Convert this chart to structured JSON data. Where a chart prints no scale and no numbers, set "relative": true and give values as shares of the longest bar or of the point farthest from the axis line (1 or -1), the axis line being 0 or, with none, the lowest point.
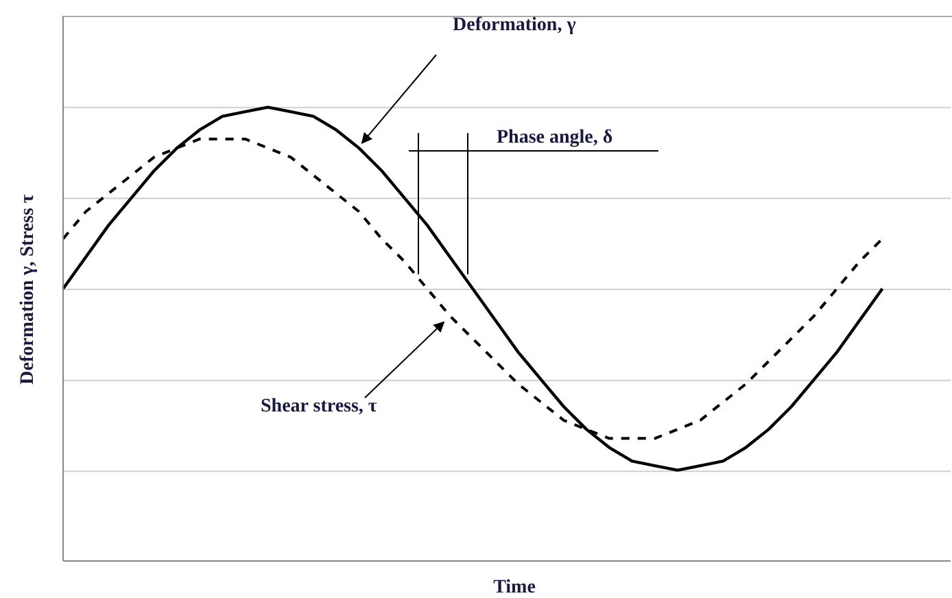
{
  "chart_data": {
    "type": "line",
    "relative": true,
    "xlabel": "Time",
    "ylabel": "Deformation γ, Stress τ",
    "grid": "y",
    "legend": false,
    "marker": "none",
    "categories": [
      null,
      null,
      null,
      null,
      null,
      null,
      null,
      null,
      null,
      null,
      null,
      null,
      null,
      null,
      null,
      null,
      null,
      null,
      null,
      null,
      null,
      null,
      null,
      null,
      null,
      null,
      null,
      null,
      null,
      null,
      null,
      null,
      null,
      null,
      null,
      null,
      null,
      null,
      null,
      null
    ],
    "series": [
      {
        "color": "#000000",
        "line_style": "solid",
        "values": [
          0.6,
          0.67,
          0.74,
          0.8,
          0.86,
          0.91,
          0.95,
          0.98,
          0.99,
          1.0,
          0.99,
          0.98,
          0.95,
          0.91,
          0.86,
          0.8,
          0.74,
          0.67,
          0.6,
          0.53,
          0.46,
          0.4,
          0.34,
          0.29,
          0.25,
          0.22,
          0.21,
          0.2,
          0.21,
          0.22,
          0.25,
          0.29,
          0.34,
          0.4,
          0.46,
          0.53,
          0.6,
          null,
          null,
          null
        ]
      },
      {
        "color": "#000000",
        "line_style": "dashed",
        "values": [
          0.71,
          0.77,
          0.81,
          0.85,
          0.89,
          0.91,
          0.93,
          0.93,
          0.93,
          0.91,
          0.89,
          0.85,
          0.81,
          0.77,
          0.71,
          0.66,
          0.6,
          0.54,
          0.49,
          0.44,
          0.39,
          0.35,
          0.31,
          0.29,
          0.27,
          0.27,
          0.27,
          0.29,
          0.31,
          0.35,
          0.39,
          0.44,
          0.49,
          0.54,
          0.6,
          0.66,
          0.71,
          null,
          null,
          null
        ]
      }
    ],
    "annotations": [
      "Deformation, γ",
      "Phase angle, δ",
      "Shear stress, τ"
    ]
  }
}
